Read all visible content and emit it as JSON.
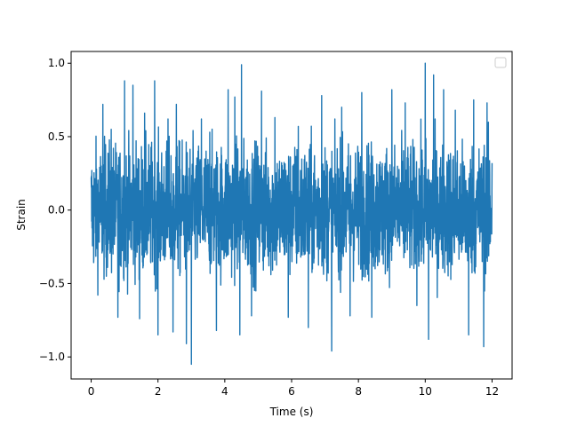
{
  "chart_data": {
    "type": "line",
    "title": "",
    "xlabel": "Time (s)",
    "ylabel": "Strain",
    "xlim": [
      -0.6,
      12.6
    ],
    "ylim": [
      -1.15,
      1.08
    ],
    "x_ticks": [
      0,
      2,
      4,
      6,
      8,
      10,
      12
    ],
    "x_tick_labels": [
      "0",
      "2",
      "4",
      "6",
      "8",
      "10",
      "12"
    ],
    "y_ticks": [
      -1.0,
      -0.5,
      0.0,
      0.5,
      1.0
    ],
    "y_tick_labels": [
      "−1.0",
      "−0.5",
      "0.0",
      "0.5",
      "1.0"
    ],
    "grid": false,
    "legend": {
      "placement": "upper-right",
      "entries": []
    },
    "series": [
      {
        "color": "#1f77b4",
        "x_start": 0,
        "x_end": 12,
        "typical_range": [
          -0.4,
          0.4
        ],
        "peaks": [
          {
            "x": 0.35,
            "y": 0.72
          },
          {
            "x": 0.6,
            "y": 0.55
          },
          {
            "x": 0.8,
            "y": -0.73
          },
          {
            "x": 1.0,
            "y": 0.88
          },
          {
            "x": 1.25,
            "y": 0.85
          },
          {
            "x": 1.45,
            "y": -0.74
          },
          {
            "x": 1.6,
            "y": 0.66
          },
          {
            "x": 1.9,
            "y": 0.88
          },
          {
            "x": 2.0,
            "y": -0.85
          },
          {
            "x": 2.3,
            "y": 0.62
          },
          {
            "x": 2.45,
            "y": -0.83
          },
          {
            "x": 2.55,
            "y": 0.72
          },
          {
            "x": 2.85,
            "y": -0.91
          },
          {
            "x": 3.0,
            "y": -1.05
          },
          {
            "x": 3.3,
            "y": 0.62
          },
          {
            "x": 3.55,
            "y": 0.53
          },
          {
            "x": 3.75,
            "y": -0.82
          },
          {
            "x": 4.1,
            "y": 0.82
          },
          {
            "x": 4.3,
            "y": 0.77
          },
          {
            "x": 4.45,
            "y": -0.85
          },
          {
            "x": 4.5,
            "y": 0.99
          },
          {
            "x": 4.8,
            "y": -0.72
          },
          {
            "x": 5.1,
            "y": 0.81
          },
          {
            "x": 5.5,
            "y": 0.63
          },
          {
            "x": 5.9,
            "y": -0.73
          },
          {
            "x": 6.2,
            "y": 0.57
          },
          {
            "x": 6.5,
            "y": -0.8
          },
          {
            "x": 6.9,
            "y": 0.78
          },
          {
            "x": 7.2,
            "y": -0.96
          },
          {
            "x": 7.5,
            "y": 0.7
          },
          {
            "x": 7.75,
            "y": -0.72
          },
          {
            "x": 8.1,
            "y": 0.8
          },
          {
            "x": 8.4,
            "y": -0.73
          },
          {
            "x": 9.0,
            "y": 0.82
          },
          {
            "x": 9.4,
            "y": 0.73
          },
          {
            "x": 9.75,
            "y": -0.65
          },
          {
            "x": 10.0,
            "y": 1.0
          },
          {
            "x": 10.1,
            "y": -0.88
          },
          {
            "x": 10.25,
            "y": 0.92
          },
          {
            "x": 10.55,
            "y": 0.82
          },
          {
            "x": 10.9,
            "y": 0.68
          },
          {
            "x": 11.3,
            "y": -0.85
          },
          {
            "x": 11.45,
            "y": 0.75
          },
          {
            "x": 11.75,
            "y": -0.93
          },
          {
            "x": 11.85,
            "y": 0.73
          },
          {
            "x": 12.0,
            "y": 0.32
          }
        ]
      }
    ]
  }
}
